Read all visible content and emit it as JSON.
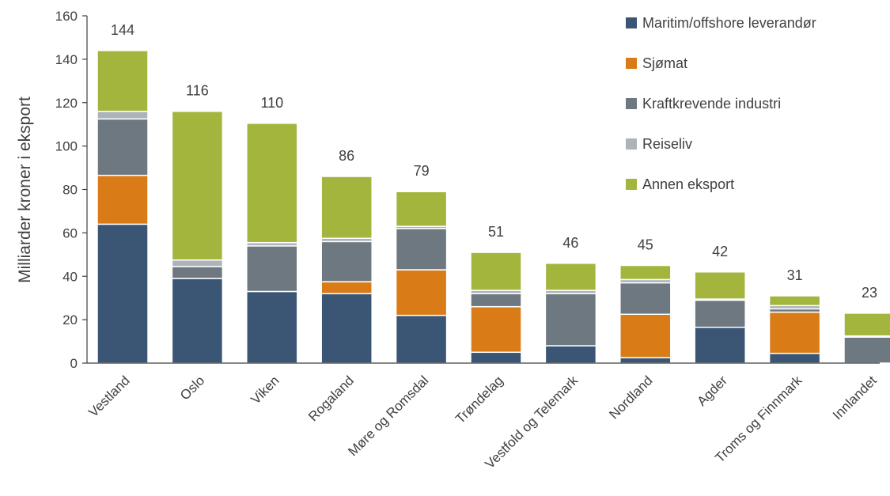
{
  "chart_data": {
    "type": "bar",
    "stacked": true,
    "title": "",
    "xlabel": "",
    "ylabel": "Milliarder kroner i eksport",
    "ylim": [
      0,
      160
    ],
    "yticks": [
      0,
      20,
      40,
      60,
      80,
      100,
      120,
      140,
      160
    ],
    "grid": false,
    "legend_position": "top-right",
    "categories": [
      "Vestland",
      "Oslo",
      "Viken",
      "Rogaland",
      "Møre og Romsdal",
      "Trøndelag",
      "Vestfold og Telemark",
      "Nordland",
      "Agder",
      "Troms og Finnmark",
      "Innlandet"
    ],
    "totals": [
      "144",
      "116",
      "110",
      "86",
      "79",
      "51",
      "46",
      "45",
      "42",
      "31",
      "23"
    ],
    "series": [
      {
        "name": "Maritim/offshore leverandør",
        "color": "#3b5575",
        "values": [
          64,
          39,
          33,
          32,
          22,
          5,
          8,
          2.5,
          16.5,
          4.5,
          0
        ]
      },
      {
        "name": "Sjømat",
        "color": "#d97b17",
        "values": [
          22.5,
          0,
          0,
          5.5,
          21,
          21,
          0,
          20,
          0,
          19,
          0
        ]
      },
      {
        "name": "Kraftkrevende industri",
        "color": "#6e7880",
        "values": [
          26,
          5.5,
          21,
          18.5,
          19,
          6,
          24,
          14.5,
          12.5,
          1.5,
          12
        ]
      },
      {
        "name": "Reiseliv",
        "color": "#acb4ba",
        "values": [
          3.5,
          3,
          1.5,
          1.5,
          1,
          1.5,
          1.5,
          1.5,
          0.5,
          1.5,
          0.5
        ]
      },
      {
        "name": "Annen eksport",
        "color": "#a4b53e",
        "values": [
          28,
          68.5,
          55,
          28.5,
          16,
          17.5,
          12.5,
          6.5,
          12.5,
          4.5,
          10.5
        ]
      }
    ]
  }
}
